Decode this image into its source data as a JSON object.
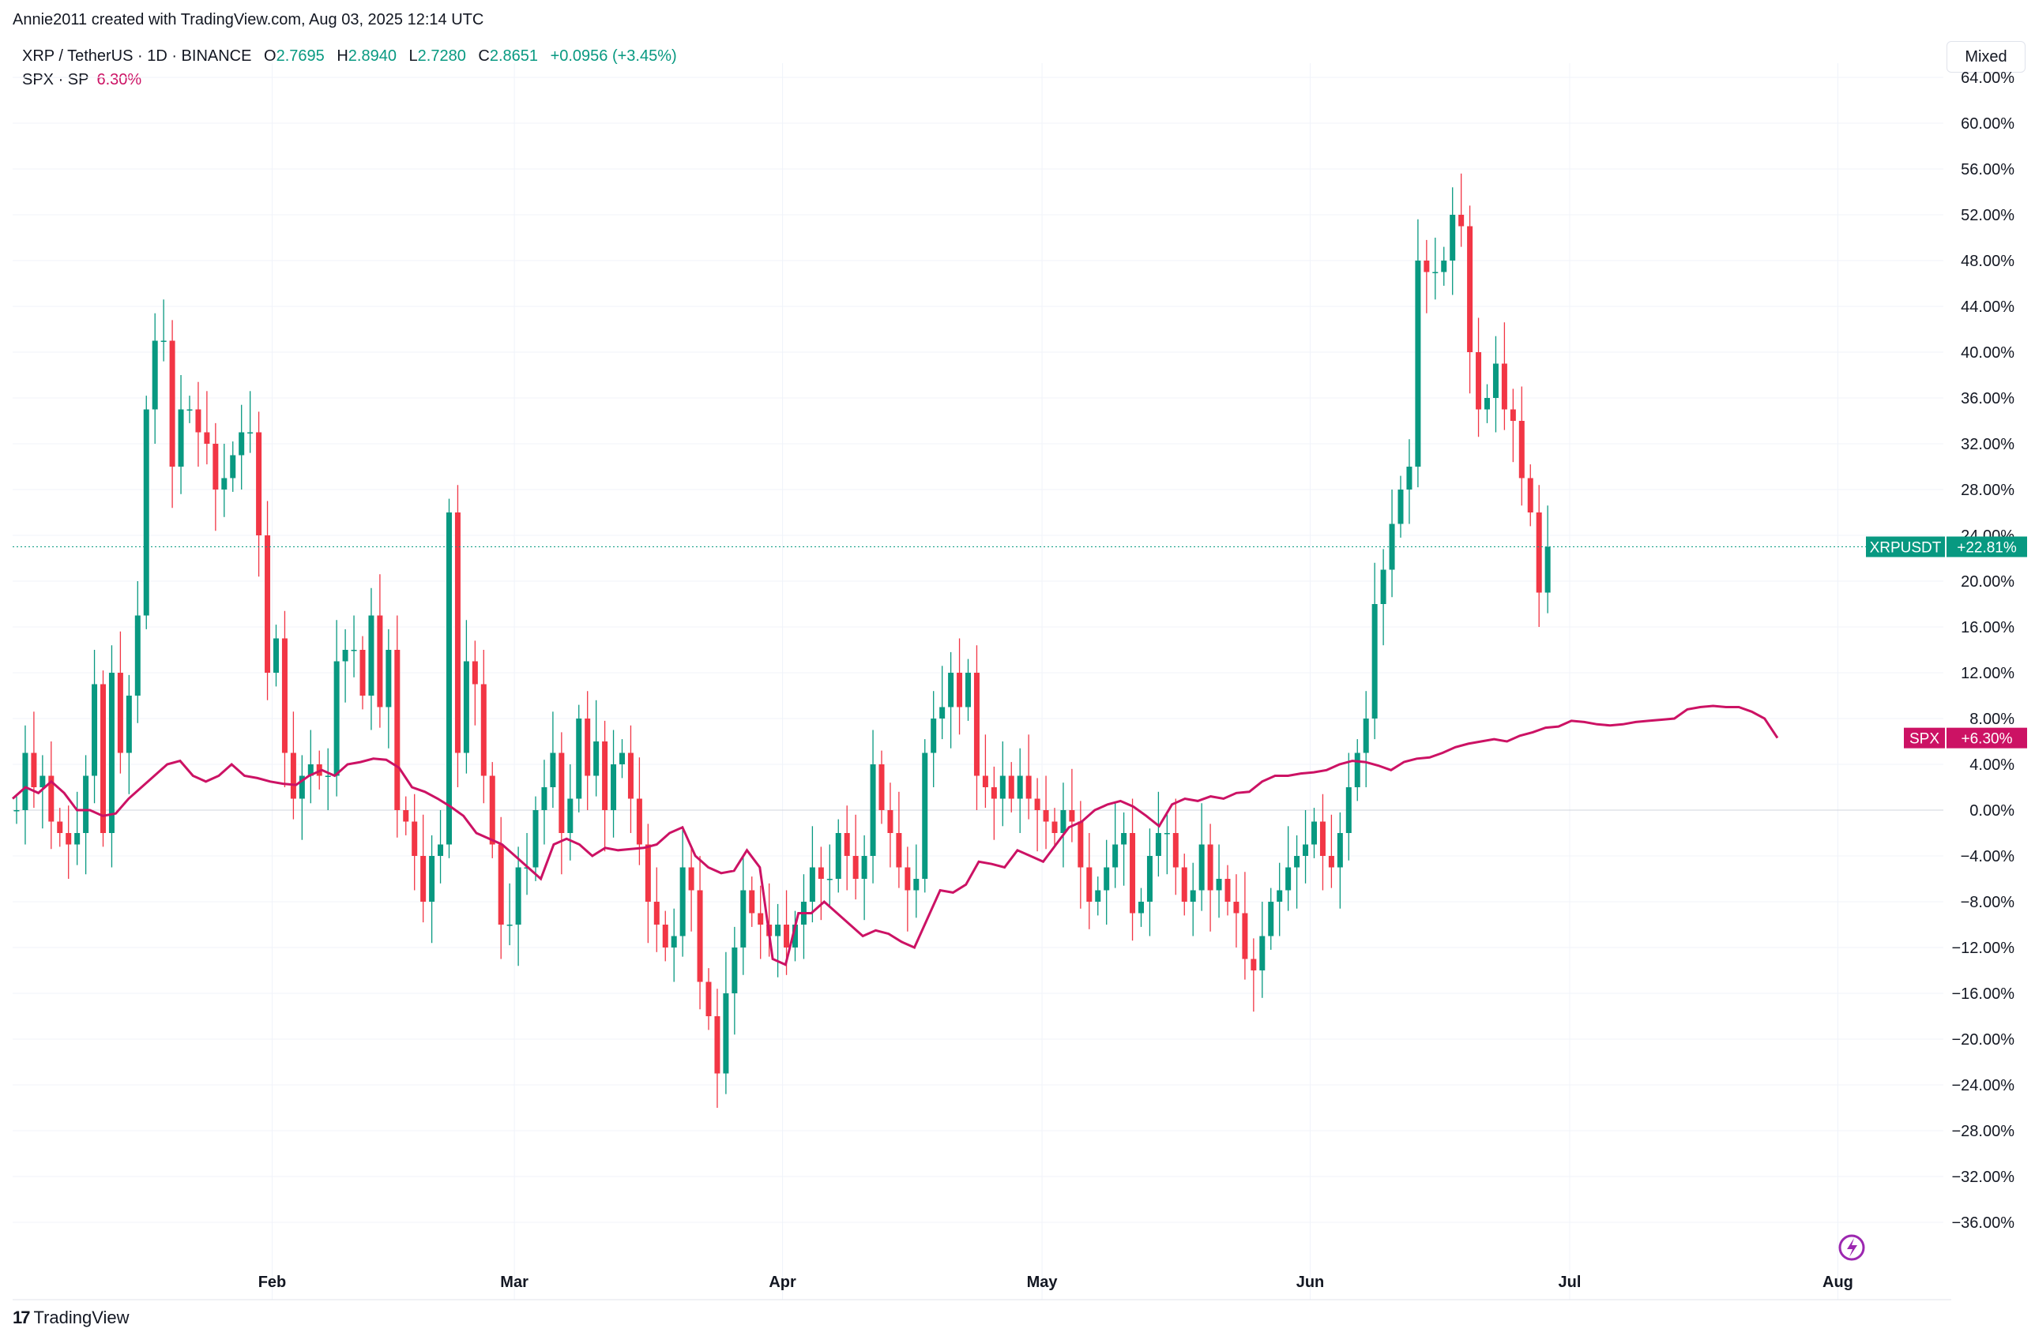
{
  "header": {
    "attribution": "Annie2011 created with TradingView.com, Aug 03, 2025 12:14 UTC"
  },
  "legend": {
    "symbol": "XRP / TetherUS · 1D · BINANCE",
    "o_label": "O",
    "o_value": "2.7695",
    "h_label": "H",
    "h_value": "2.8940",
    "l_label": "L",
    "l_value": "2.7280",
    "c_label": "C",
    "c_value": "2.8651",
    "change": "+0.0956 (+3.45%)",
    "spx_label": "SPX · SP",
    "spx_value": "6.30%"
  },
  "toolbar": {
    "mode_label": "Mixed"
  },
  "footer": {
    "brand": "TradingView",
    "brand_mark": "17"
  },
  "colors": {
    "up": "#089981",
    "down": "#f23645",
    "spx": "#cc1264",
    "grid": "#f0f3fa",
    "zero_line": "#d1d4dc"
  },
  "icons": {
    "lightning": "lightning-icon"
  },
  "chart_data": {
    "type": "candlestick+line",
    "y_unit": "percent",
    "ylim": [
      -38,
      64
    ],
    "y_ticks": [
      "64.00%",
      "60.00%",
      "56.00%",
      "52.00%",
      "48.00%",
      "44.00%",
      "40.00%",
      "36.00%",
      "32.00%",
      "28.00%",
      "24.00%",
      "20.00%",
      "16.00%",
      "12.00%",
      "8.00%",
      "4.00%",
      "0.00%",
      "−4.00%",
      "−8.00%",
      "−12.00%",
      "−16.00%",
      "−20.00%",
      "−24.00%",
      "−28.00%",
      "−32.00%",
      "−36.00%"
    ],
    "x_ticks": [
      {
        "label": "Feb",
        "date": "2025-02-01"
      },
      {
        "label": "Mar",
        "date": "2025-03-01"
      },
      {
        "label": "Apr",
        "date": "2025-04-01"
      },
      {
        "label": "May",
        "date": "2025-05-01"
      },
      {
        "label": "Jun",
        "date": "2025-06-01"
      },
      {
        "label": "Jul",
        "date": "2025-07-01"
      },
      {
        "label": "Aug",
        "date": "2025-08-01"
      }
    ],
    "start_date": "2025-01-02",
    "series": [
      {
        "name": "XRPUSDT",
        "kind": "candles",
        "last_label": "+22.81%",
        "close_trend": [
          0,
          5,
          2,
          3,
          -1,
          -2,
          -3,
          -2,
          3,
          11,
          -2,
          12,
          5,
          10,
          17,
          35,
          41,
          41,
          30,
          35,
          35,
          33,
          32,
          28,
          29,
          31,
          33,
          33,
          24,
          12,
          15,
          5,
          1,
          3,
          4,
          3,
          3,
          13,
          14,
          14,
          10,
          17,
          9,
          14,
          0,
          -1,
          -4,
          -8,
          -4,
          -3,
          26,
          5,
          13,
          11,
          3,
          -3,
          -10,
          -10,
          -5,
          -5,
          0,
          2,
          5,
          -2,
          1,
          8,
          3,
          6,
          0,
          4,
          5,
          1,
          -3,
          -8,
          -10,
          -12,
          -11,
          -5,
          -7,
          -15,
          -18,
          -23,
          -16,
          -12,
          -7,
          -9,
          -10,
          -11,
          -10,
          -12,
          -10,
          -8,
          -5,
          -6,
          -6,
          -2,
          -4,
          -6,
          -4,
          4,
          0,
          -2,
          -5,
          -7,
          -6,
          5,
          8,
          9,
          12,
          9,
          12,
          3,
          2,
          1,
          3,
          1,
          3,
          1,
          0,
          -1,
          -2,
          0,
          -1,
          -5,
          -8,
          -7,
          -5,
          -3,
          -2,
          -9,
          -8,
          -4,
          -2,
          -2,
          -5,
          -8,
          -7,
          -3,
          -7,
          -6,
          -8,
          -9,
          -13,
          -14,
          -11,
          -8,
          -7,
          -5,
          -4,
          -3,
          -1,
          -4,
          -5,
          -2,
          2,
          5,
          8,
          18,
          21,
          25,
          28,
          30,
          48,
          47,
          47,
          48,
          52,
          51,
          40,
          35,
          36,
          39,
          35,
          34,
          29,
          26,
          19,
          23
        ]
      },
      {
        "name": "SPX",
        "kind": "line",
        "last_label": "+6.30%",
        "values": [
          1,
          2,
          1.5,
          2.5,
          1.5,
          0,
          0,
          -0.5,
          -0.3,
          1,
          2,
          3,
          4,
          4.3,
          3,
          2.5,
          3,
          4,
          3,
          2.8,
          2.5,
          2.3,
          2.2,
          3,
          3.5,
          3,
          4,
          4.2,
          4.5,
          4.4,
          3.7,
          2,
          1.6,
          1,
          0.3,
          -0.5,
          -2,
          -2.5,
          -3,
          -4,
          -5,
          -6,
          -3,
          -2.5,
          -3,
          -4,
          -3.3,
          -3.5,
          -3.4,
          -3.3,
          -3,
          -2,
          -1.5,
          -4,
          -5,
          -5.5,
          -5.3,
          -3.5,
          -5,
          -13,
          -13.5,
          -9,
          -9,
          -8,
          -9,
          -10,
          -11,
          -10.5,
          -10.8,
          -11.5,
          -12,
          -9.5,
          -7,
          -7.2,
          -6.5,
          -4.5,
          -4.7,
          -5,
          -3.5,
          -4,
          -4.5,
          -3,
          -1.5,
          -1,
          0,
          0.5,
          0.8,
          0.3,
          -0.5,
          -1.4,
          0.5,
          1,
          0.8,
          1.2,
          1,
          1.5,
          1.6,
          2.5,
          3,
          3,
          3.2,
          3.3,
          3.5,
          4,
          4.3,
          4.2,
          3.9,
          3.5,
          4.2,
          4.5,
          4.6,
          5,
          5.5,
          5.8,
          6,
          6.2,
          6,
          6.5,
          6.8,
          7.2,
          7.3,
          7.8,
          7.7,
          7.5,
          7.4,
          7.5,
          7.7,
          7.8,
          7.9,
          8,
          8.8,
          9.0,
          9.1,
          9.0,
          9.0,
          8.6,
          8.0,
          6.3
        ]
      }
    ],
    "grid": true,
    "legend_position": "top-left"
  }
}
